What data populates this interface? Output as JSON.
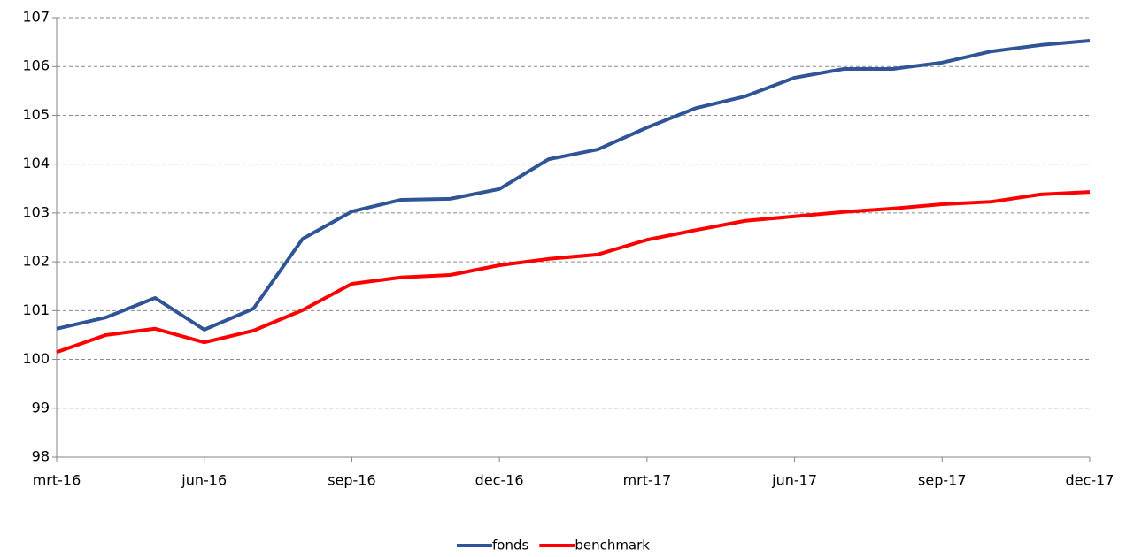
{
  "chart_data": {
    "type": "line",
    "categories": [
      "mrt-16",
      null,
      null,
      "jun-16",
      null,
      null,
      "sep-16",
      null,
      null,
      "dec-16",
      null,
      null,
      "mrt-17",
      null,
      null,
      "jun-17",
      null,
      null,
      "sep-17",
      null,
      null,
      "dec-17"
    ],
    "series": [
      {
        "name": "fonds",
        "color": "#2f5597",
        "values": [
          100.63,
          100.86,
          101.26,
          100.61,
          101.04,
          102.47,
          103.03,
          103.27,
          103.29,
          103.49,
          104.1,
          104.3,
          104.75,
          105.15,
          105.39,
          105.77,
          105.95,
          105.95,
          106.08,
          106.31,
          106.44,
          106.53
        ]
      },
      {
        "name": "benchmark",
        "color": "#ff0000",
        "values": [
          100.15,
          100.5,
          100.63,
          100.35,
          100.59,
          101.01,
          101.55,
          101.68,
          101.73,
          101.93,
          102.06,
          102.15,
          102.45,
          102.65,
          102.84,
          102.93,
          103.02,
          103.09,
          103.18,
          103.23,
          103.38,
          103.43
        ]
      }
    ],
    "ylim": [
      98,
      107
    ],
    "yticks": [
      98,
      99,
      100,
      101,
      102,
      103,
      104,
      105,
      106,
      107
    ],
    "grid": true,
    "legend": "bottom"
  }
}
